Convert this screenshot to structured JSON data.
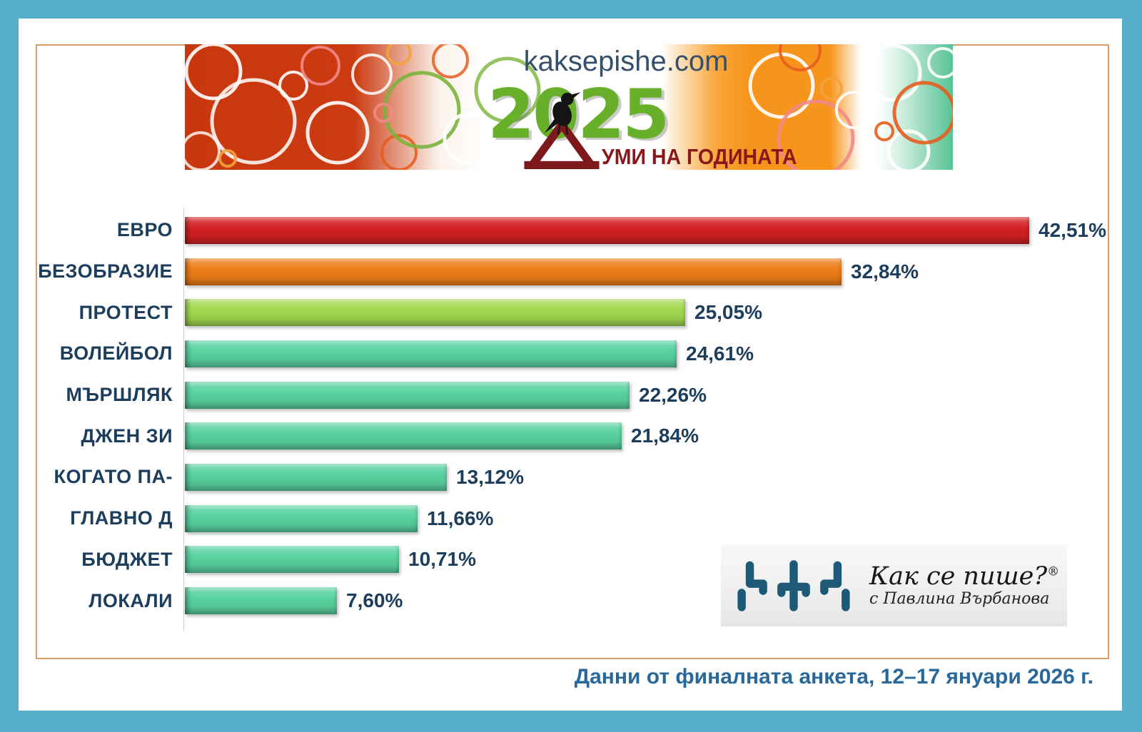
{
  "page": {
    "frame_color": "#56aec8",
    "inner_border_color": "#db9e66",
    "background": "#ffffff"
  },
  "banner": {
    "site": "kaksepishe.com",
    "year": "2025",
    "title_suffix": "УМИ НА ГОДИНАТА",
    "title_full": "ДУМИ НА ГОДИНАТА",
    "colors": {
      "left_red": "#ca3810",
      "right_orange": "#f6941b",
      "right_green": "#56c395",
      "year_green": "#68b02a",
      "maroon": "#8a181b",
      "site_text": "#35506a"
    }
  },
  "chart_data": {
    "type": "bar",
    "orientation": "horizontal",
    "categories": [
      "ЕВРО",
      "БЕЗОБРАЗИЕ",
      "ПРОТЕСТ",
      "ВОЛЕЙБОЛ",
      "МЪРШЛЯК",
      "ДЖЕН ЗИ",
      "КОГАТО ПА-",
      "ГЛАВНО Д",
      "БЮДЖЕТ",
      "ЛОКАЛИ"
    ],
    "values": [
      42.51,
      32.84,
      25.05,
      24.61,
      22.26,
      21.84,
      13.12,
      11.66,
      10.71,
      7.6
    ],
    "value_labels": [
      "42,51%",
      "32,84%",
      "25,05%",
      "24,61%",
      "22,26%",
      "21,84%",
      "13,12%",
      "11,66%",
      "10,71%",
      "7,60%"
    ],
    "bar_colors": [
      "#d42024",
      "#ee7d17",
      "#a2d84e",
      "#58d2a0",
      "#58d2a0",
      "#58d2a0",
      "#58d2a0",
      "#58d2a0",
      "#58d2a0",
      "#58d2a0"
    ],
    "label_color": "#1d3d5c",
    "xlim": [
      0,
      45
    ],
    "grid": false,
    "legend": false,
    "title": ""
  },
  "logo": {
    "title": "Как се пише?",
    "registered": "®",
    "tagline": "с Павлина Върбанова",
    "glyph_color": "#1d5a78"
  },
  "footer": {
    "text": "Данни от финалната анкета, 12–17 януари 2026 г.",
    "color": "#29689b"
  }
}
